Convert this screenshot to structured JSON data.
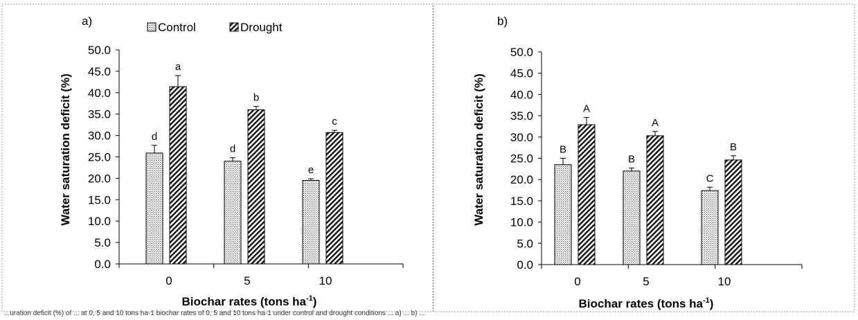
{
  "caption_fragment": "...uration deficit (%) of ... at 0, 5 and 10 tons ha-1 biochar rates of 0, 5 and 10 tons ha-1 under control and drought conditions ... a) ... b) ...",
  "colors": {
    "control_fill": "#e6e6e6",
    "drought_fill": "#ffffff",
    "border": "#000000",
    "panel_border": "#8a8a8a"
  },
  "chart_data": [
    {
      "type": "bar",
      "panel_label": "a)",
      "title": "",
      "xlabel": "Biochar rates (tons ha",
      "xlabel_sup": "-1",
      "xlabel_close": ")",
      "ylabel": "Water saturation deficit (%)",
      "ylim": [
        0,
        50
      ],
      "yticks": [
        "0.0",
        "5.0",
        "10.0",
        "15.0",
        "20.0",
        "25.0",
        "30.0",
        "35.0",
        "40.0",
        "45.0",
        "50.0"
      ],
      "categories": [
        "0",
        "5",
        "10"
      ],
      "legend": {
        "position": "top",
        "entries": [
          "Control",
          "Drought"
        ]
      },
      "series": [
        {
          "name": "Control",
          "values": [
            25.9,
            24.0,
            19.5
          ],
          "errors": [
            1.8,
            0.8,
            0.4
          ],
          "letters": [
            "d",
            "d",
            "e"
          ]
        },
        {
          "name": "Drought",
          "values": [
            41.4,
            36.0,
            30.7
          ],
          "errors": [
            2.6,
            0.8,
            0.5
          ],
          "letters": [
            "a",
            "b",
            "c"
          ]
        }
      ]
    },
    {
      "type": "bar",
      "panel_label": "b)",
      "title": "",
      "xlabel": "Biochar rates (tons ha",
      "xlabel_sup": "-1",
      "xlabel_close": ")",
      "ylabel": "Water saturation deficit  (%)",
      "ylim": [
        0,
        50
      ],
      "yticks": [
        "0.0",
        "5.0",
        "10.0",
        "15.0",
        "20.0",
        "25.0",
        "30.0",
        "35.0",
        "40.0",
        "45.0",
        "50.0"
      ],
      "categories": [
        "0",
        "5",
        "10"
      ],
      "series": [
        {
          "name": "Control",
          "values": [
            23.5,
            22.0,
            17.4
          ],
          "errors": [
            1.5,
            0.7,
            0.8
          ],
          "letters": [
            "B",
            "B",
            "C"
          ]
        },
        {
          "name": "Drought",
          "values": [
            32.9,
            30.3,
            24.6
          ],
          "errors": [
            1.7,
            1.0,
            1.0
          ],
          "letters": [
            "A",
            "A",
            "B"
          ]
        }
      ]
    }
  ]
}
